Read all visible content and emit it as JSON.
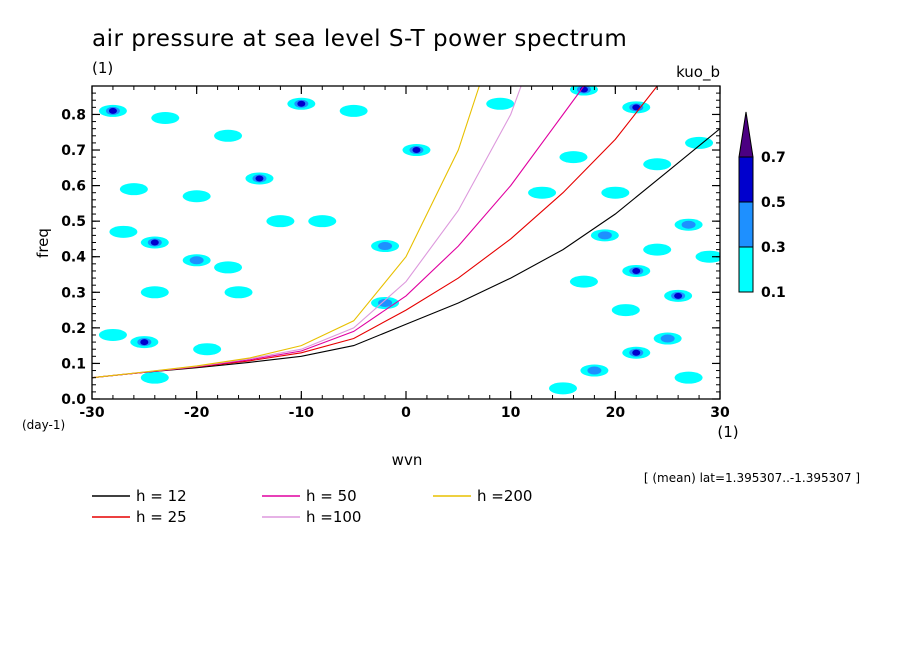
{
  "title": "air pressure at sea level S-T power spectrum",
  "title_unit": "(1)",
  "model_label": "kuo_b",
  "chart_data": {
    "type": "heatmap",
    "title": "air pressure at sea level S-T power spectrum",
    "xlabel": "wvn",
    "ylabel": "freq",
    "x_unit": "(1)",
    "y_unit": "(day-1)",
    "xlim": [
      -30,
      30
    ],
    "ylim": [
      0,
      0.88
    ],
    "x_ticks": [
      "-30",
      "-20",
      "-10",
      "0",
      "10",
      "20",
      "30"
    ],
    "y_ticks": [
      "0.0",
      "0.1",
      "0.2",
      "0.3",
      "0.4",
      "0.5",
      "0.6",
      "0.7",
      "0.8"
    ],
    "colorbar": {
      "levels": [
        "0.1",
        "0.3",
        "0.5",
        "0.7"
      ],
      "colors": [
        "#00ffff",
        "#1e90ff",
        "#0000cd",
        "#4b0082"
      ]
    },
    "annotation": "[ (mean) lat=1.395307..-1.395307 ]",
    "series": [
      {
        "name": "h = 12",
        "color": "#000000",
        "h": 12,
        "x": [
          -30,
          -25,
          -20,
          -15,
          -10,
          -5,
          0,
          5,
          10,
          15,
          20,
          25,
          30
        ],
        "y": [
          0.06,
          0.075,
          0.088,
          0.103,
          0.12,
          0.15,
          0.21,
          0.27,
          0.34,
          0.42,
          0.52,
          0.64,
          0.76
        ]
      },
      {
        "name": "h = 25",
        "color": "#e60000",
        "h": 25,
        "x": [
          -30,
          -25,
          -20,
          -15,
          -10,
          -5,
          0,
          5,
          10,
          15,
          20,
          24
        ],
        "y": [
          0.06,
          0.075,
          0.09,
          0.107,
          0.13,
          0.17,
          0.25,
          0.34,
          0.45,
          0.58,
          0.73,
          0.88
        ]
      },
      {
        "name": "h = 50",
        "color": "#e000a0",
        "h": 50,
        "x": [
          -30,
          -25,
          -20,
          -15,
          -10,
          -5,
          0,
          5,
          10,
          15,
          17
        ],
        "y": [
          0.06,
          0.075,
          0.091,
          0.11,
          0.135,
          0.19,
          0.29,
          0.43,
          0.6,
          0.8,
          0.88
        ]
      },
      {
        "name": "h =100",
        "color": "#dd99dd",
        "h": 100,
        "x": [
          -30,
          -25,
          -20,
          -15,
          -10,
          -5,
          0,
          5,
          10,
          11
        ],
        "y": [
          0.06,
          0.076,
          0.092,
          0.113,
          0.14,
          0.2,
          0.33,
          0.53,
          0.8,
          0.88
        ]
      },
      {
        "name": "h =200",
        "color": "#e8c000",
        "h": 200,
        "x": [
          -30,
          -25,
          -20,
          -15,
          -10,
          -5,
          0,
          5,
          7
        ],
        "y": [
          0.06,
          0.076,
          0.093,
          0.115,
          0.15,
          0.22,
          0.4,
          0.7,
          0.88
        ]
      }
    ],
    "contour_patches": [
      {
        "x": -28,
        "y": 0.81,
        "v": 0.5
      },
      {
        "x": -23,
        "y": 0.79,
        "v": 0.1
      },
      {
        "x": -17,
        "y": 0.74,
        "v": 0.1
      },
      {
        "x": -10,
        "y": 0.83,
        "v": 0.5
      },
      {
        "x": -5,
        "y": 0.81,
        "v": 0.1
      },
      {
        "x": 1,
        "y": 0.7,
        "v": 0.5
      },
      {
        "x": -14,
        "y": 0.62,
        "v": 0.5
      },
      {
        "x": -26,
        "y": 0.59,
        "v": 0.1
      },
      {
        "x": -20,
        "y": 0.57,
        "v": 0.1
      },
      {
        "x": -12,
        "y": 0.5,
        "v": 0.1
      },
      {
        "x": -8,
        "y": 0.5,
        "v": 0.1
      },
      {
        "x": -27,
        "y": 0.47,
        "v": 0.1
      },
      {
        "x": -24,
        "y": 0.44,
        "v": 0.5
      },
      {
        "x": -20,
        "y": 0.39,
        "v": 0.3
      },
      {
        "x": -17,
        "y": 0.37,
        "v": 0.1
      },
      {
        "x": -2,
        "y": 0.43,
        "v": 0.3
      },
      {
        "x": -24,
        "y": 0.3,
        "v": 0.1
      },
      {
        "x": -16,
        "y": 0.3,
        "v": 0.1
      },
      {
        "x": -28,
        "y": 0.18,
        "v": 0.1
      },
      {
        "x": -25,
        "y": 0.16,
        "v": 0.5
      },
      {
        "x": -19,
        "y": 0.14,
        "v": 0.1
      },
      {
        "x": -24,
        "y": 0.06,
        "v": 0.1
      },
      {
        "x": -2,
        "y": 0.27,
        "v": 0.3
      },
      {
        "x": 9,
        "y": 0.83,
        "v": 0.1
      },
      {
        "x": 17,
        "y": 0.87,
        "v": 0.5
      },
      {
        "x": 22,
        "y": 0.82,
        "v": 0.5
      },
      {
        "x": 16,
        "y": 0.68,
        "v": 0.1
      },
      {
        "x": 24,
        "y": 0.66,
        "v": 0.1
      },
      {
        "x": 28,
        "y": 0.72,
        "v": 0.1
      },
      {
        "x": 20,
        "y": 0.58,
        "v": 0.1
      },
      {
        "x": 27,
        "y": 0.49,
        "v": 0.3
      },
      {
        "x": 19,
        "y": 0.46,
        "v": 0.3
      },
      {
        "x": 24,
        "y": 0.42,
        "v": 0.1
      },
      {
        "x": 22,
        "y": 0.36,
        "v": 0.5
      },
      {
        "x": 17,
        "y": 0.33,
        "v": 0.1
      },
      {
        "x": 26,
        "y": 0.29,
        "v": 0.5
      },
      {
        "x": 21,
        "y": 0.25,
        "v": 0.1
      },
      {
        "x": 25,
        "y": 0.17,
        "v": 0.3
      },
      {
        "x": 22,
        "y": 0.13,
        "v": 0.5
      },
      {
        "x": 18,
        "y": 0.08,
        "v": 0.3
      },
      {
        "x": 27,
        "y": 0.06,
        "v": 0.1
      },
      {
        "x": 15,
        "y": 0.03,
        "v": 0.1
      },
      {
        "x": 29,
        "y": 0.4,
        "v": 0.1
      },
      {
        "x": 13,
        "y": 0.58,
        "v": 0.1
      }
    ]
  }
}
